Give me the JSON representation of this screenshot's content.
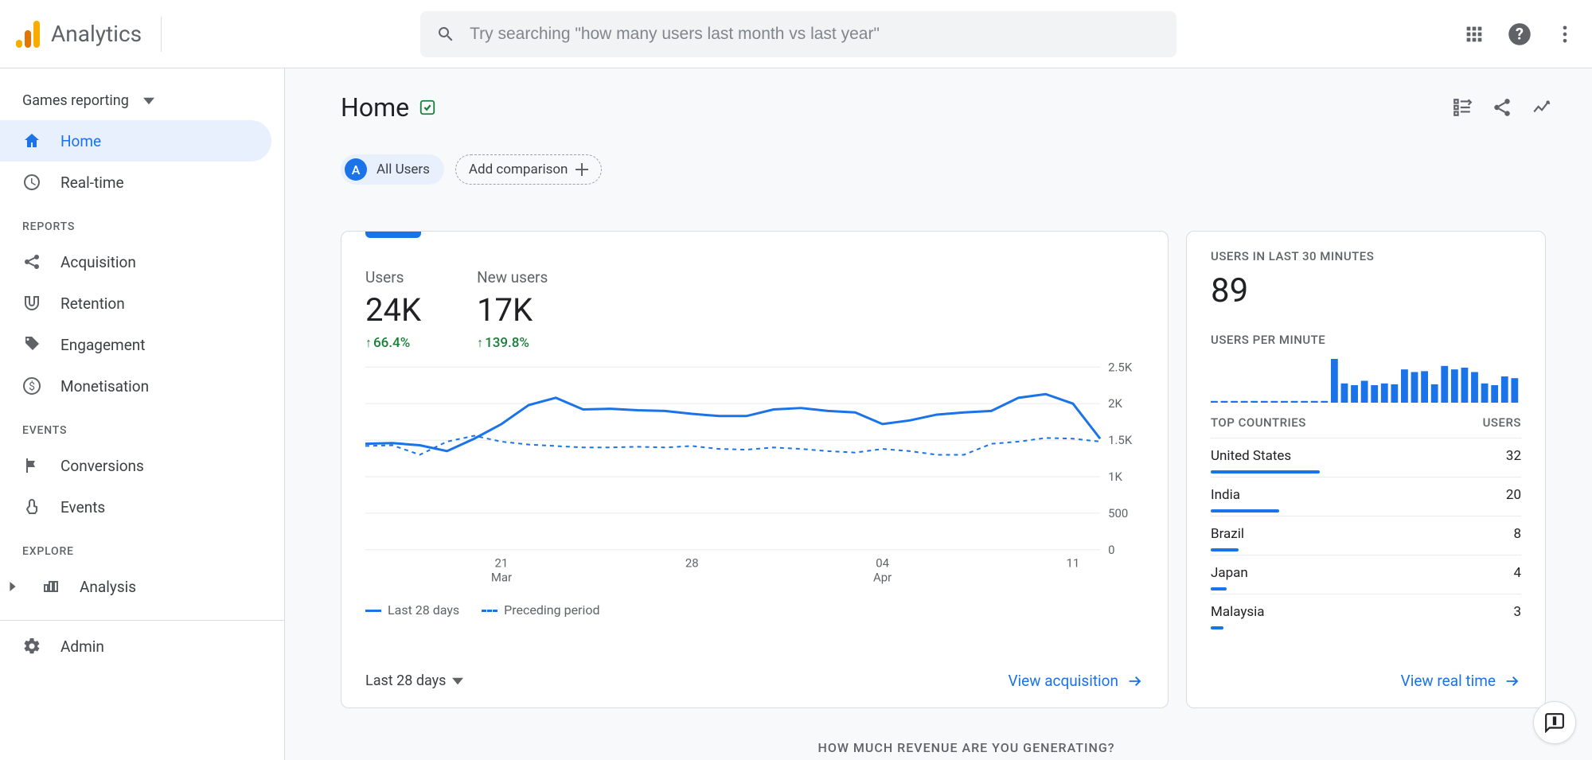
{
  "header": {
    "product_name": "Analytics",
    "search_placeholder": "Try searching \"how many users last month vs last year\""
  },
  "sidebar": {
    "property_label": "Games reporting",
    "items": [
      {
        "label": "Home",
        "icon": "home",
        "active": true
      },
      {
        "label": "Real-time",
        "icon": "clock",
        "active": false
      }
    ],
    "section_reports_label": "REPORTS",
    "reports": [
      {
        "label": "Acquisition",
        "icon": "share-nodes"
      },
      {
        "label": "Retention",
        "icon": "magnet"
      },
      {
        "label": "Engagement",
        "icon": "tag"
      },
      {
        "label": "Monetisation",
        "icon": "dollar"
      }
    ],
    "section_events_label": "EVENTS",
    "events": [
      {
        "label": "Conversions",
        "icon": "flag"
      },
      {
        "label": "Events",
        "icon": "touch"
      }
    ],
    "section_explore_label": "EXPLORE",
    "explore": [
      {
        "label": "Analysis",
        "icon": "bar-chart"
      }
    ],
    "admin_label": "Admin"
  },
  "page": {
    "title": "Home",
    "all_users_chip": "All Users",
    "all_users_badge": "A",
    "add_comparison_label": "Add comparison"
  },
  "main_card": {
    "metrics": [
      {
        "label": "Users",
        "value": "24K",
        "delta": "66.4%"
      },
      {
        "label": "New users",
        "value": "17K",
        "delta": "139.8%"
      }
    ],
    "chart": {
      "type": "line",
      "ylim": [
        0,
        2500
      ],
      "yticks": [
        {
          "v": 0,
          "l": "0"
        },
        {
          "v": 500,
          "l": "500"
        },
        {
          "v": 1000,
          "l": "1K"
        },
        {
          "v": 1500,
          "l": "1.5K"
        },
        {
          "v": 2000,
          "l": "2K"
        },
        {
          "v": 2500,
          "l": "2.5K"
        }
      ],
      "xticks": [
        {
          "i": 5,
          "l1": "21",
          "l2": "Mar"
        },
        {
          "i": 12,
          "l1": "28",
          "l2": ""
        },
        {
          "i": 19,
          "l1": "04",
          "l2": "Apr"
        },
        {
          "i": 26,
          "l1": "11",
          "l2": ""
        }
      ],
      "series_current": {
        "color": "#1a73e8",
        "values": [
          1450,
          1460,
          1430,
          1350,
          1520,
          1720,
          1980,
          2080,
          1920,
          1930,
          1910,
          1900,
          1860,
          1830,
          1830,
          1920,
          1940,
          1900,
          1880,
          1720,
          1770,
          1850,
          1880,
          1900,
          2080,
          2130,
          2000,
          1520
        ]
      },
      "series_prev": {
        "color": "#1a73e8",
        "dashed": true,
        "values": [
          1420,
          1430,
          1300,
          1480,
          1560,
          1480,
          1440,
          1420,
          1400,
          1400,
          1410,
          1400,
          1420,
          1380,
          1370,
          1400,
          1380,
          1350,
          1330,
          1380,
          1350,
          1300,
          1300,
          1450,
          1480,
          1530,
          1520,
          1480
        ]
      }
    },
    "legend_current": "Last 28 days",
    "legend_prev": "Preceding period",
    "date_range_label": "Last 28 days",
    "link_label": "View acquisition"
  },
  "rt_card": {
    "title": "USERS IN LAST 30 MINUTES",
    "value": "89",
    "subtitle": "USERS PER MINUTE",
    "sparkline": {
      "color": "#1a73e8",
      "values": [
        2,
        2,
        2,
        2,
        2,
        2,
        2,
        2,
        2,
        2,
        2,
        2,
        50,
        22,
        20,
        25,
        20,
        22,
        21,
        38,
        35,
        36,
        21,
        42,
        38,
        40,
        35,
        22,
        20,
        30,
        28
      ]
    },
    "table_header_left": "TOP COUNTRIES",
    "table_header_right": "USERS",
    "max_bar": 32,
    "rows": [
      {
        "country": "United States",
        "users": "32",
        "bar_pct": 35
      },
      {
        "country": "India",
        "users": "20",
        "bar_pct": 22
      },
      {
        "country": "Brazil",
        "users": "8",
        "bar_pct": 9
      },
      {
        "country": "Japan",
        "users": "4",
        "bar_pct": 5
      },
      {
        "country": "Malaysia",
        "users": "3",
        "bar_pct": 4
      }
    ],
    "link_label": "View real time"
  },
  "bottom_section_label": "HOW MUCH REVENUE ARE YOU GENERATING?",
  "colors": {
    "primary": "#1a73e8",
    "green": "#188038",
    "grid": "#e8eaed",
    "text_secondary": "#5f6368",
    "background": "#f8f9fa"
  }
}
